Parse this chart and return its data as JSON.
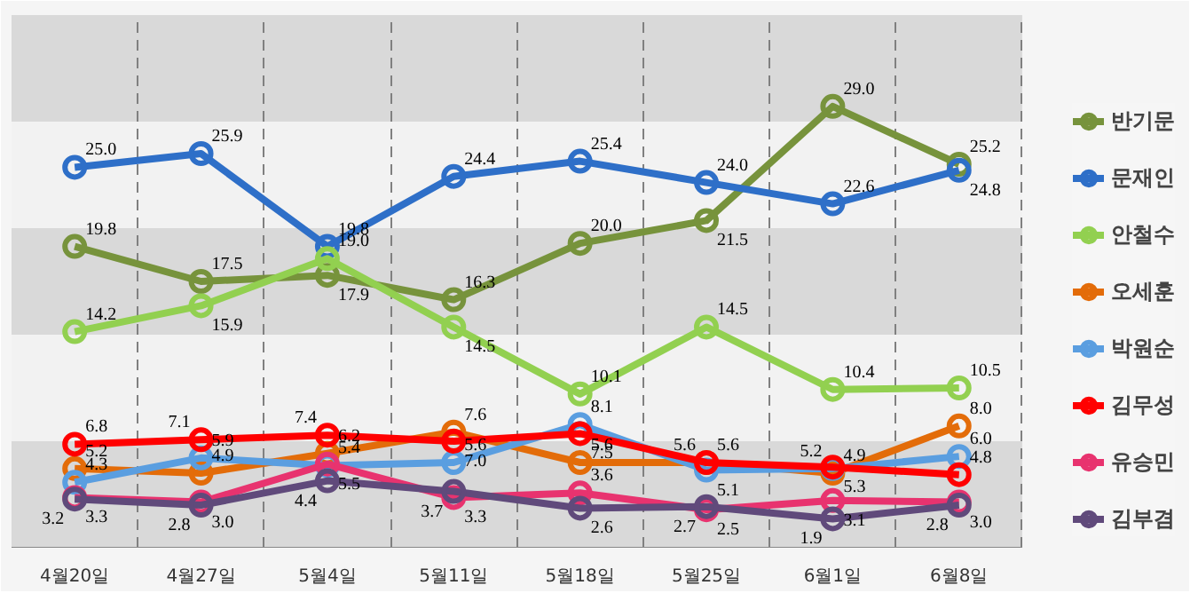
{
  "chart_data": {
    "type": "line",
    "categories": [
      "4월20일",
      "4월27일",
      "5월4일",
      "5월11일",
      "5월18일",
      "5월25일",
      "6월1일",
      "6월8일"
    ],
    "ylim": [
      0,
      35
    ],
    "bands": [
      {
        "axis": "y",
        "from": 0,
        "to": 7,
        "color": "#d9d9d9"
      },
      {
        "axis": "y",
        "from": 14,
        "to": 21,
        "color": "#d9d9d9"
      },
      {
        "axis": "y",
        "from": 28,
        "to": 35,
        "color": "#d9d9d9"
      }
    ],
    "tick_labels": "x",
    "grid": "x",
    "legend": "right",
    "marker": "circle",
    "line_style": "solid",
    "data_labels": true,
    "series": [
      {
        "name": "반기문",
        "color": "#77933c",
        "values": [
          19.8,
          17.5,
          17.9,
          16.3,
          20.0,
          21.5,
          29.0,
          25.2
        ],
        "value_labels": [
          "19.8",
          "17.5",
          "17.9",
          "16.3",
          "20.0",
          "21.5",
          "29.0",
          "25.2"
        ]
      },
      {
        "name": "문재인",
        "color": "#2e6fc8",
        "values": [
          25.0,
          25.9,
          19.8,
          24.4,
          25.4,
          24.0,
          22.6,
          24.8
        ],
        "value_labels": [
          "25.0",
          "25.9",
          "19.8",
          "24.4",
          "25.4",
          "24.0",
          "22.6",
          "24.8"
        ]
      },
      {
        "name": "안철수",
        "color": "#92d050",
        "values": [
          14.2,
          15.9,
          19.0,
          14.5,
          10.1,
          14.5,
          10.4,
          10.5
        ],
        "value_labels": [
          "14.2",
          "15.9",
          "19.0",
          "14.5",
          "10.1",
          "14.5",
          "10.4",
          "10.5"
        ]
      },
      {
        "name": "오세훈",
        "color": "#e36c09",
        "values": [
          5.2,
          4.9,
          6.2,
          7.6,
          5.6,
          5.6,
          4.9,
          8.0
        ],
        "value_labels": [
          "5.2",
          "4.9",
          "6.2",
          "7.6",
          "5.6",
          "5.6",
          "4.9",
          "8.0"
        ]
      },
      {
        "name": "박원순",
        "color": "#5a9ee0",
        "values": [
          4.3,
          5.9,
          5.4,
          5.6,
          8.1,
          5.1,
          5.2,
          6.0
        ],
        "value_labels": [
          "4.3",
          "5.9",
          "5.4",
          "5.6",
          "8.1",
          "5.1",
          "5.2",
          "6.0"
        ]
      },
      {
        "name": "김무성",
        "color": "#ff0000",
        "values": [
          6.8,
          7.1,
          7.4,
          7.0,
          7.5,
          5.6,
          5.3,
          4.8
        ],
        "value_labels": [
          "6.8",
          "7.1",
          "7.4",
          "7.0",
          "7.5",
          "5.6",
          "5.3",
          "4.8"
        ]
      },
      {
        "name": "유승민",
        "color": "#e8336f",
        "values": [
          3.3,
          3.0,
          5.5,
          3.3,
          3.6,
          2.5,
          3.1,
          3.0
        ],
        "value_labels": [
          "3.3",
          "3.0",
          "5.5",
          "3.3",
          "3.6",
          "2.5",
          "3.1",
          "3.0"
        ]
      },
      {
        "name": "김부겸",
        "color": "#604a7b",
        "values": [
          3.2,
          2.8,
          4.4,
          3.7,
          2.6,
          2.7,
          1.9,
          2.8
        ],
        "value_labels": [
          "3.2",
          "2.8",
          "4.4",
          "3.7",
          "2.6",
          "2.7",
          "1.9",
          "2.8"
        ]
      }
    ]
  }
}
